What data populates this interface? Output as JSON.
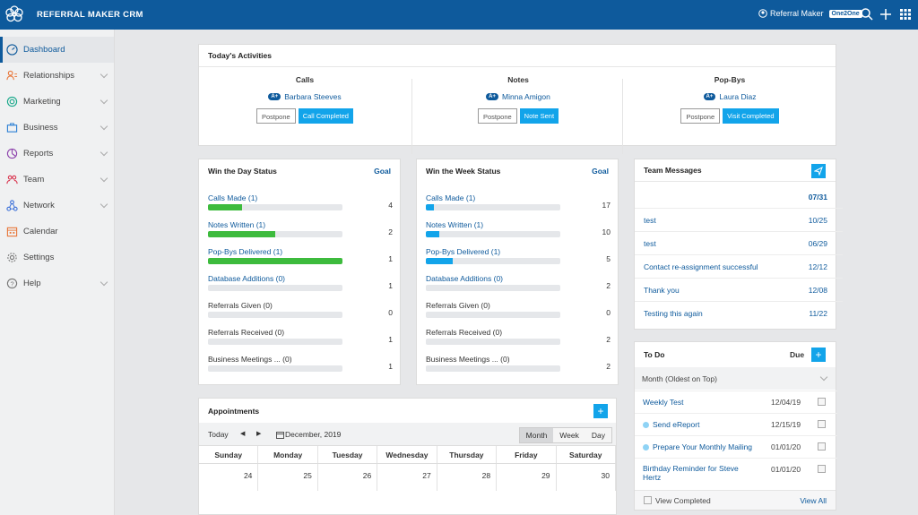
{
  "app": {
    "title": "REFERRAL MAKER CRM",
    "user": "Referral Maker",
    "badge": "One2One"
  },
  "sidebar": {
    "items": [
      {
        "label": "Dashboard",
        "icon": "dashboard-icon"
      },
      {
        "label": "Relationships",
        "icon": "relationships-icon"
      },
      {
        "label": "Marketing",
        "icon": "marketing-icon"
      },
      {
        "label": "Business",
        "icon": "business-icon"
      },
      {
        "label": "Reports",
        "icon": "reports-icon"
      },
      {
        "label": "Team",
        "icon": "team-icon"
      },
      {
        "label": "Network",
        "icon": "network-icon"
      },
      {
        "label": "Calendar",
        "icon": "calendar-icon"
      },
      {
        "label": "Settings",
        "icon": "settings-icon"
      },
      {
        "label": "Help",
        "icon": "help-icon"
      }
    ]
  },
  "activities": {
    "title": "Today's Activities",
    "columns": [
      {
        "title": "Calls",
        "badge": "A+",
        "contact": "Barbara Steeves",
        "postpone": "Postpone",
        "action": "Call Completed"
      },
      {
        "title": "Notes",
        "badge": "A+",
        "contact": "Minna Amigon",
        "postpone": "Postpone",
        "action": "Note Sent"
      },
      {
        "title": "Pop-Bys",
        "badge": "A+",
        "contact": "Laura Diaz",
        "postpone": "Postpone",
        "action": "Visit Completed"
      }
    ]
  },
  "win_day": {
    "title": "Win the Day Status",
    "goal": "Goal",
    "rows": [
      {
        "label": "Calls Made (1)",
        "count": "4",
        "progress": 0.25,
        "link": true
      },
      {
        "label": "Notes Written (1)",
        "count": "2",
        "progress": 0.5,
        "link": true
      },
      {
        "label": "Pop-Bys Delivered (1)",
        "count": "1",
        "progress": 1.0,
        "link": true
      },
      {
        "label": "Database Additions (0)",
        "count": "1",
        "progress": 0,
        "link": true
      },
      {
        "label": "Referrals Given (0)",
        "count": "0",
        "progress": 0,
        "link": false
      },
      {
        "label": "Referrals Received (0)",
        "count": "1",
        "progress": 0,
        "link": false
      },
      {
        "label": "Business Meetings ... (0)",
        "count": "1",
        "progress": 0,
        "link": false
      }
    ]
  },
  "win_week": {
    "title": "Win the Week Status",
    "goal": "Goal",
    "rows": [
      {
        "label": "Calls Made (1)",
        "count": "17",
        "progress": 0.06,
        "link": true
      },
      {
        "label": "Notes Written (1)",
        "count": "10",
        "progress": 0.1,
        "link": true
      },
      {
        "label": "Pop-Bys Delivered (1)",
        "count": "5",
        "progress": 0.2,
        "link": true
      },
      {
        "label": "Database Additions (0)",
        "count": "2",
        "progress": 0,
        "link": true
      },
      {
        "label": "Referrals Given (0)",
        "count": "0",
        "progress": 0,
        "link": false
      },
      {
        "label": "Referrals Received (0)",
        "count": "2",
        "progress": 0,
        "link": false
      },
      {
        "label": "Business Meetings ... (0)",
        "count": "2",
        "progress": 0,
        "link": false
      }
    ]
  },
  "messages": {
    "title": "Team Messages",
    "top_date": "07/31",
    "items": [
      {
        "text": "test",
        "date": "10/25"
      },
      {
        "text": "test",
        "date": "06/29"
      },
      {
        "text": "Contact re-assignment successful",
        "date": "12/12"
      },
      {
        "text": "Thank you",
        "date": "12/08"
      },
      {
        "text": "Testing this again",
        "date": "11/22"
      }
    ]
  },
  "todo": {
    "title": "To Do",
    "due": "Due",
    "filter": "Month (Oldest on Top)",
    "items": [
      {
        "text": "Weekly Test",
        "date": "12/04/19",
        "dot": false
      },
      {
        "text": "Send eReport",
        "date": "12/15/19",
        "dot": true
      },
      {
        "text": "Prepare Your Monthly Mailing",
        "date": "01/01/20",
        "dot": true
      },
      {
        "text": "Birthday Reminder for Steve Hertz",
        "date": "01/01/20",
        "dot": false
      }
    ],
    "view_completed": "View Completed",
    "view_all": "View All"
  },
  "appointments": {
    "title": "Appointments",
    "today": "Today",
    "month_label": "December, 2019",
    "views": [
      "Month",
      "Week",
      "Day"
    ],
    "days": [
      "Sunday",
      "Monday",
      "Tuesday",
      "Wednesday",
      "Thursday",
      "Friday",
      "Saturday"
    ],
    "dates": [
      "24",
      "25",
      "26",
      "27",
      "28",
      "29",
      "30"
    ]
  }
}
